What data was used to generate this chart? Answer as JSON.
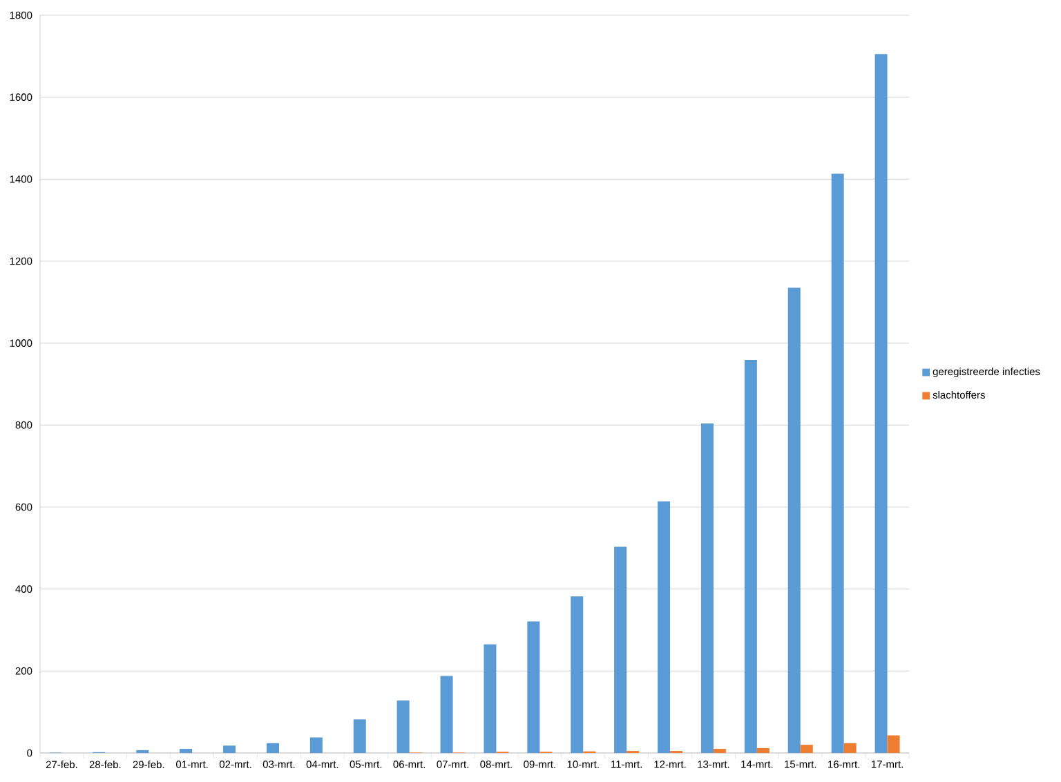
{
  "chart_data": {
    "type": "bar",
    "categories": [
      "27-feb.",
      "28-feb.",
      "29-feb.",
      "01-mrt.",
      "02-mrt.",
      "03-mrt.",
      "04-mrt.",
      "05-mrt.",
      "06-mrt.",
      "07-mrt.",
      "08-mrt.",
      "09-mrt.",
      "10-mrt.",
      "11-mrt.",
      "12-mrt.",
      "13-mrt.",
      "14-mrt.",
      "15-mrt.",
      "16-mrt.",
      "17-mrt."
    ],
    "series": [
      {
        "name": "geregistreerde infecties",
        "color": "#5b9bd5",
        "values": [
          1,
          2,
          7,
          10,
          18,
          24,
          38,
          82,
          128,
          188,
          265,
          321,
          382,
          503,
          614,
          804,
          959,
          1135,
          1413,
          1705
        ]
      },
      {
        "name": "slachtoffers",
        "color": "#ed7d31",
        "values": [
          0,
          0,
          0,
          0,
          0,
          0,
          0,
          0,
          1,
          1,
          3,
          3,
          4,
          5,
          5,
          10,
          12,
          20,
          24,
          43
        ]
      }
    ],
    "ylim": [
      0,
      1800
    ],
    "yticks": [
      0,
      200,
      400,
      600,
      800,
      1000,
      1200,
      1400,
      1600,
      1800
    ],
    "grid": "y",
    "legend": "right"
  }
}
